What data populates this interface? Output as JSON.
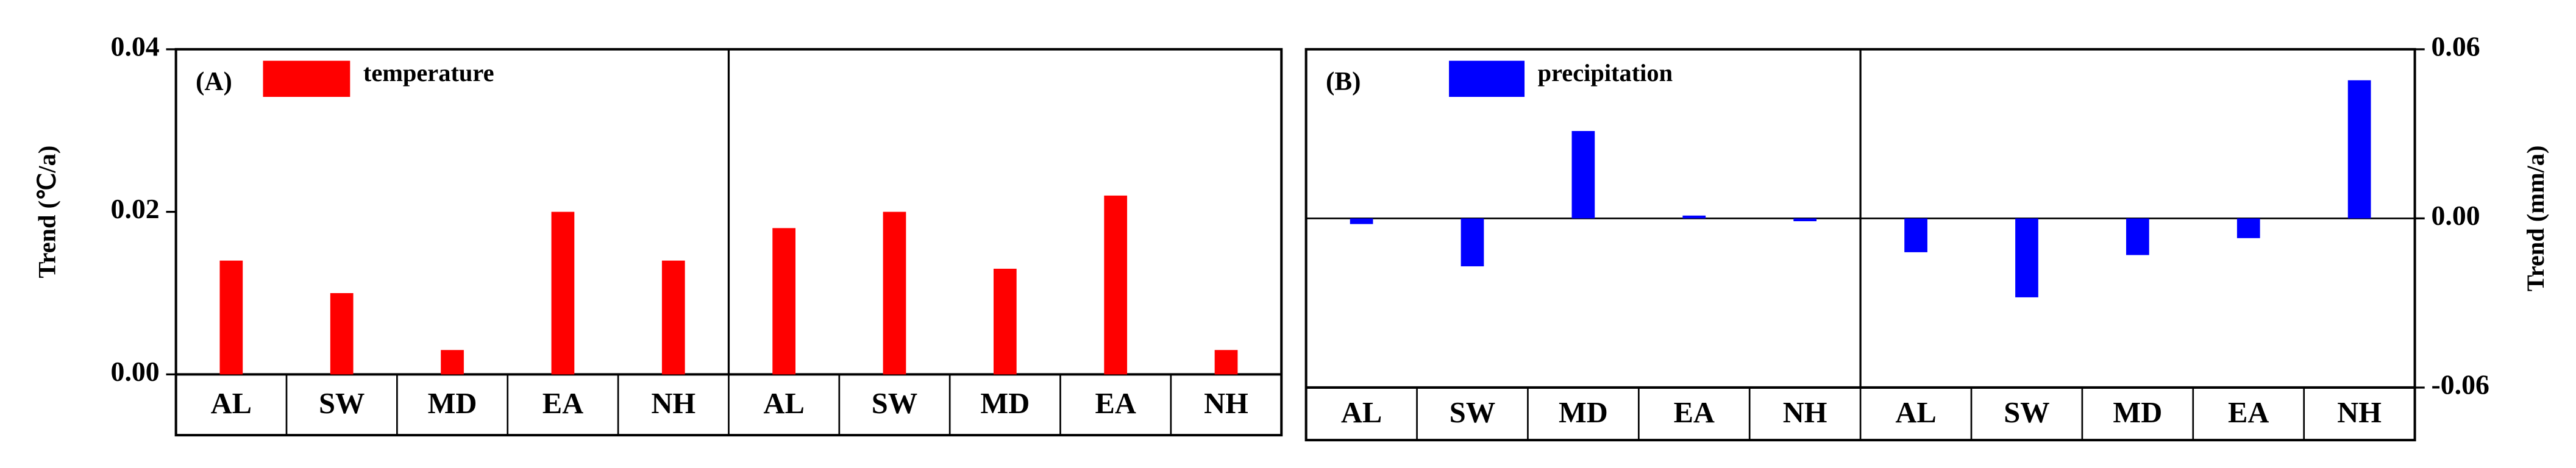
{
  "chart_data": [
    {
      "type": "bar",
      "panel_label": "(A)",
      "y_label": "Trend (℃/a)",
      "categories": [
        "AL",
        "SW",
        "MD",
        "EA",
        "NH",
        "AL",
        "SW",
        "MD",
        "EA",
        "NH"
      ],
      "series": [
        {
          "name": "temperature",
          "color": "#ff0000",
          "values": [
            0.014,
            0.01,
            0.003,
            0.02,
            0.014,
            0.018,
            0.02,
            0.013,
            0.022,
            0.003
          ]
        }
      ],
      "ylim": [
        0,
        0.04
      ],
      "yticks": [
        {
          "value": 0,
          "label": "0.00"
        },
        0.02,
        0.04
      ],
      "axis_side": "left"
    },
    {
      "type": "bar",
      "panel_label": "(B)",
      "y_label": "Trend (mm/a)",
      "categories": [
        "AL",
        "SW",
        "MD",
        "EA",
        "NH",
        "AL",
        "SW",
        "MD",
        "EA",
        "NH"
      ],
      "series": [
        {
          "name": "precipitation",
          "color": "#0000ff",
          "values": [
            -0.002,
            -0.017,
            0.031,
            0.001,
            -0.001,
            -0.012,
            -0.028,
            -0.013,
            -0.007,
            0.049
          ]
        }
      ],
      "ylim": [
        -0.06,
        0.06
      ],
      "yticks": [
        -0.06,
        {
          "value": 0,
          "label": "0.00"
        },
        0.06
      ],
      "axis_side": "right"
    }
  ]
}
